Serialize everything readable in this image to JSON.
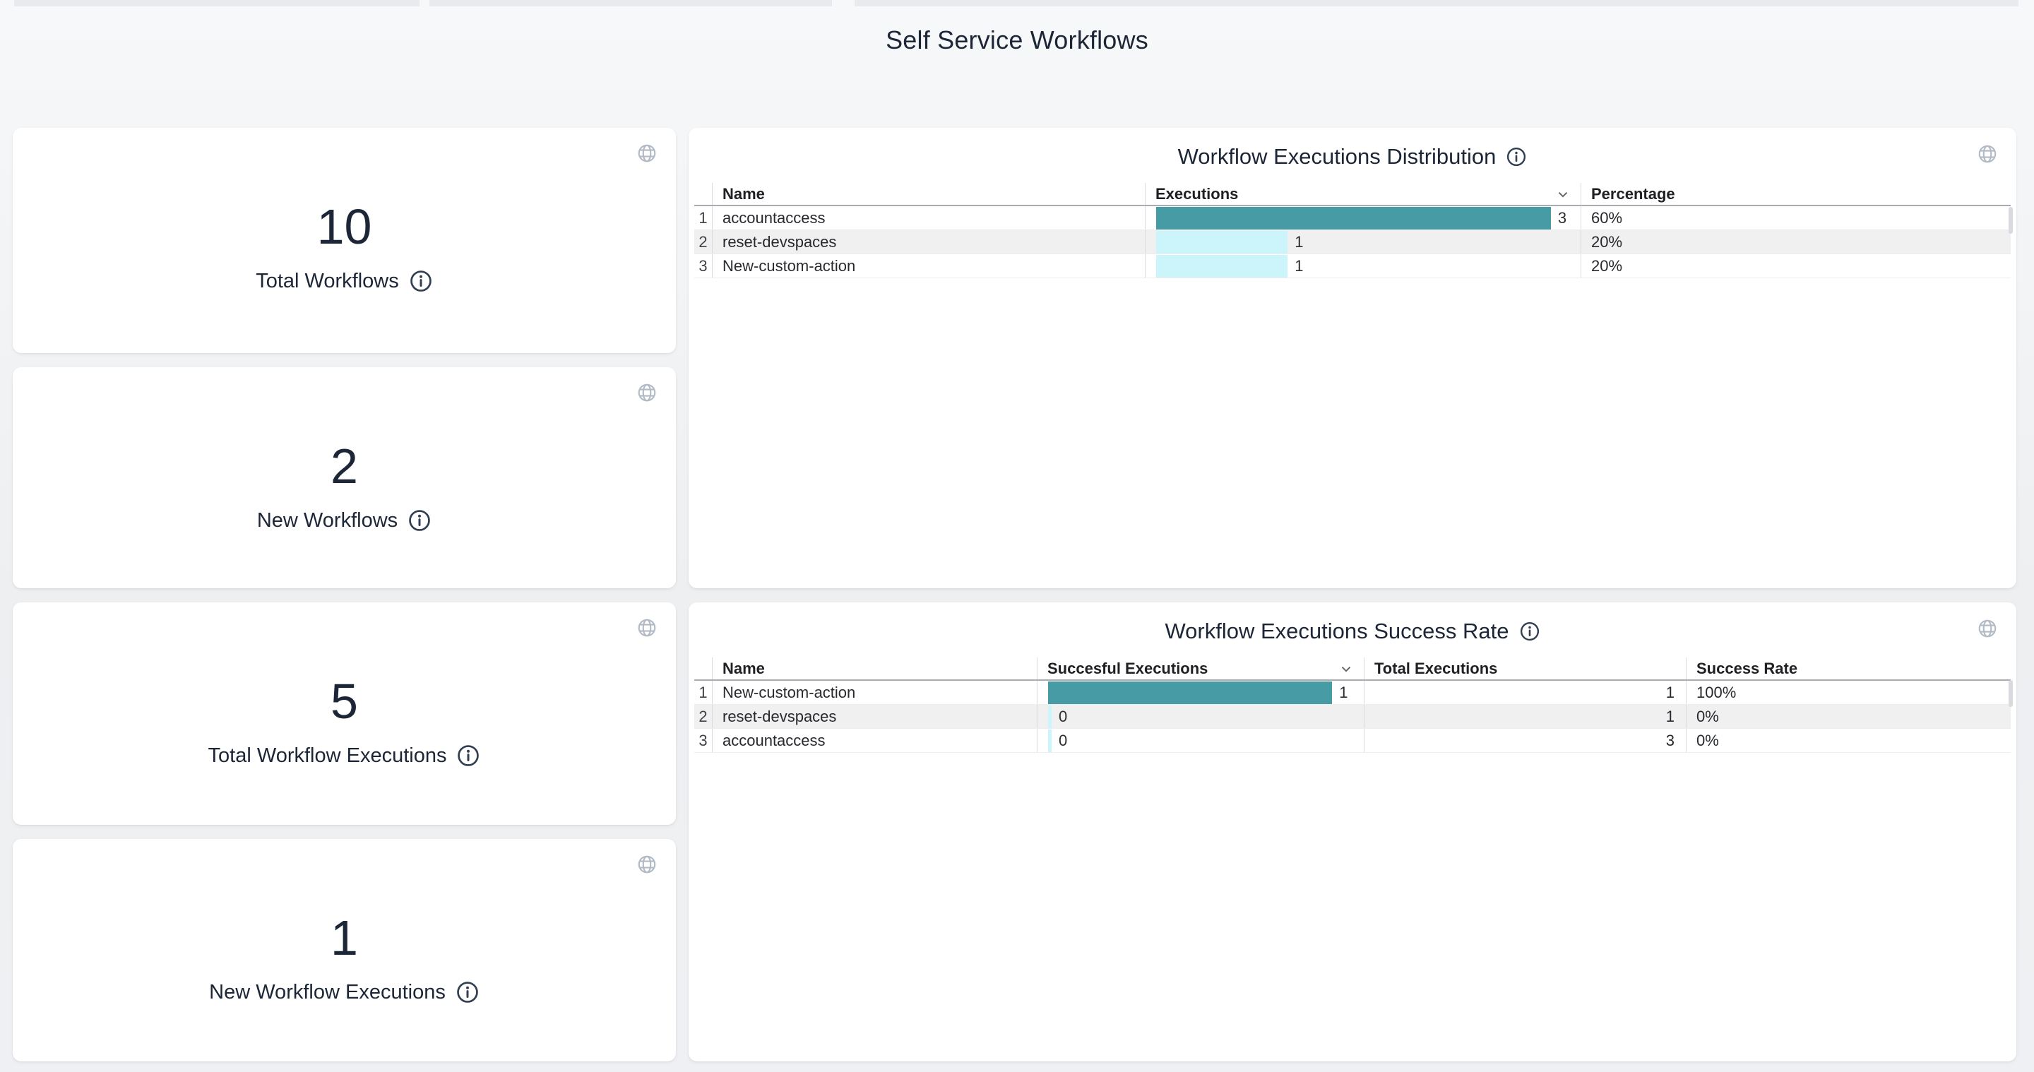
{
  "page": {
    "title": "Self Service Workflows"
  },
  "colors": {
    "page_bg": "#f1f2f5",
    "card_bg": "#ffffff",
    "heading_text": "#1c2637",
    "table_text": "#27292d",
    "bar_primary": "#469ba4",
    "bar_secondary": "#cbf5fb",
    "row_stripe": "#f0f0f1",
    "icon_gray": "#b2bac6",
    "cutoff_strip": "#e8eaed"
  },
  "icons": {
    "card_action": "globe-icon",
    "help": "info-icon",
    "sort": "chevron-down-icon"
  },
  "stat_cards": [
    {
      "value": "10",
      "label": "Total Workflows"
    },
    {
      "value": "2",
      "label": "New Workflows"
    },
    {
      "value": "5",
      "label": "Total Workflow Executions"
    },
    {
      "value": "1",
      "label": "New Workflow Executions"
    }
  ],
  "distribution_panel": {
    "title": "Workflow Executions Distribution",
    "columns": {
      "name": "Name",
      "executions": "Executions",
      "percentage": "Percentage"
    },
    "sort_column": "Executions",
    "sort_direction": "desc",
    "max_value": 3,
    "rows": [
      {
        "index": "1",
        "name": "accountaccess",
        "executions": 3,
        "percentage": "60%"
      },
      {
        "index": "2",
        "name": "reset-devspaces",
        "executions": 1,
        "percentage": "20%"
      },
      {
        "index": "3",
        "name": "New-custom-action",
        "executions": 1,
        "percentage": "20%"
      }
    ]
  },
  "success_panel": {
    "title": "Workflow Executions Success Rate",
    "columns": {
      "name": "Name",
      "successful": "Succesful Executions",
      "total": "Total Executions",
      "rate": "Success Rate"
    },
    "sort_column": "Succesful Executions",
    "sort_direction": "desc",
    "max_value": 1,
    "rows": [
      {
        "index": "1",
        "name": "New-custom-action",
        "successful": 1,
        "total": 1,
        "rate": "100%"
      },
      {
        "index": "2",
        "name": "reset-devspaces",
        "successful": 0,
        "total": 1,
        "rate": "0%"
      },
      {
        "index": "3",
        "name": "accountaccess",
        "successful": 0,
        "total": 3,
        "rate": "0%"
      }
    ]
  },
  "chart_data": [
    {
      "type": "table",
      "title": "Workflow Executions Distribution",
      "columns": [
        "Name",
        "Executions",
        "Percentage"
      ],
      "rows": [
        [
          "accountaccess",
          3,
          "60%"
        ],
        [
          "reset-devspaces",
          1,
          "20%"
        ],
        [
          "New-custom-action",
          1,
          "20%"
        ]
      ],
      "bar_column": "Executions",
      "bar_max": 3
    },
    {
      "type": "table",
      "title": "Workflow Executions Success Rate",
      "columns": [
        "Name",
        "Succesful Executions",
        "Total Executions",
        "Success Rate"
      ],
      "rows": [
        [
          "New-custom-action",
          1,
          1,
          "100%"
        ],
        [
          "reset-devspaces",
          0,
          1,
          "0%"
        ],
        [
          "accountaccess",
          0,
          3,
          "0%"
        ]
      ],
      "bar_column": "Succesful Executions",
      "bar_max": 1
    }
  ]
}
